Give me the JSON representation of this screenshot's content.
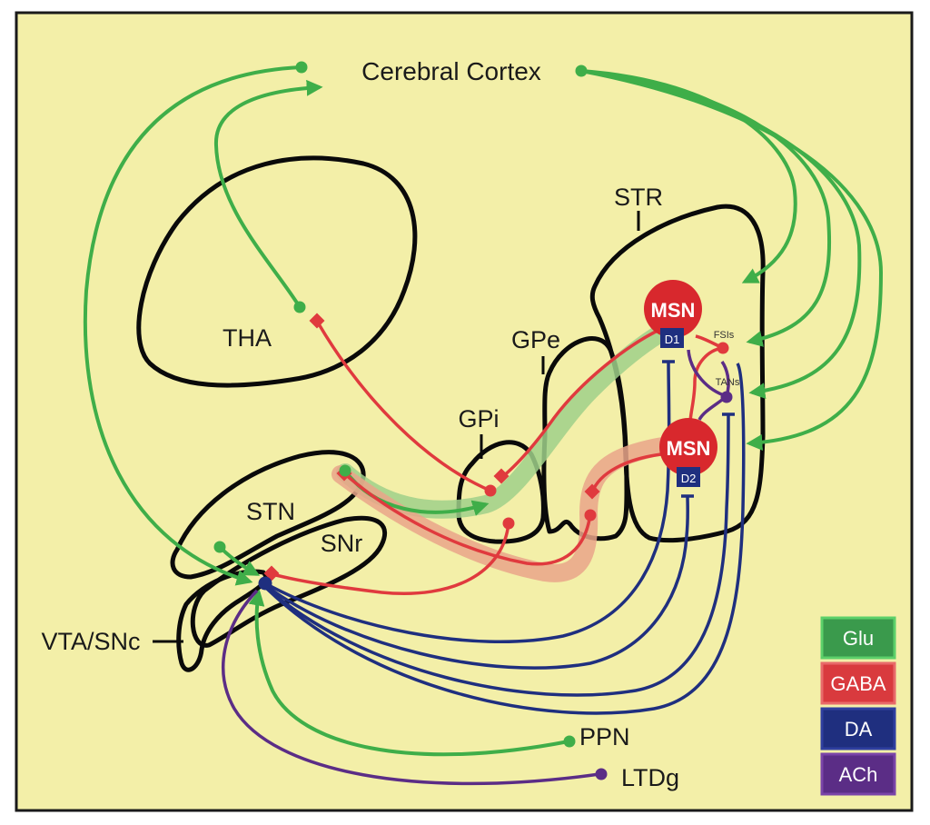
{
  "title": "Cerebral Cortex",
  "regions": {
    "tha": "THA",
    "str": "STR",
    "gpe": "GPe",
    "gpi": "GPi",
    "stn": "STN",
    "snr": "SNr",
    "vta_snc": "VTA/SNc",
    "ppn": "PPN",
    "ltdg": "LTDg"
  },
  "cells": {
    "msn1": "MSN",
    "msn2": "MSN",
    "d1": "D1",
    "d2": "D2",
    "fsis": "FSIs",
    "tans": "TANs"
  },
  "legend": [
    {
      "label": "Glu",
      "color": "#3a9a4c",
      "border": "#5cd06a"
    },
    {
      "label": "GABA",
      "color": "#d93a3e",
      "border": "#e86a6a"
    },
    {
      "label": "DA",
      "color": "#1f2f7f",
      "border": "#2f3f9f"
    },
    {
      "label": "ACh",
      "color": "#5b2d86",
      "border": "#7a44a8"
    }
  ],
  "colors": {
    "background": "#f3efa8",
    "glu": "#3fae49",
    "gaba": "#e03a3e",
    "da": "#1f2f7f",
    "ach": "#5b2d86"
  }
}
